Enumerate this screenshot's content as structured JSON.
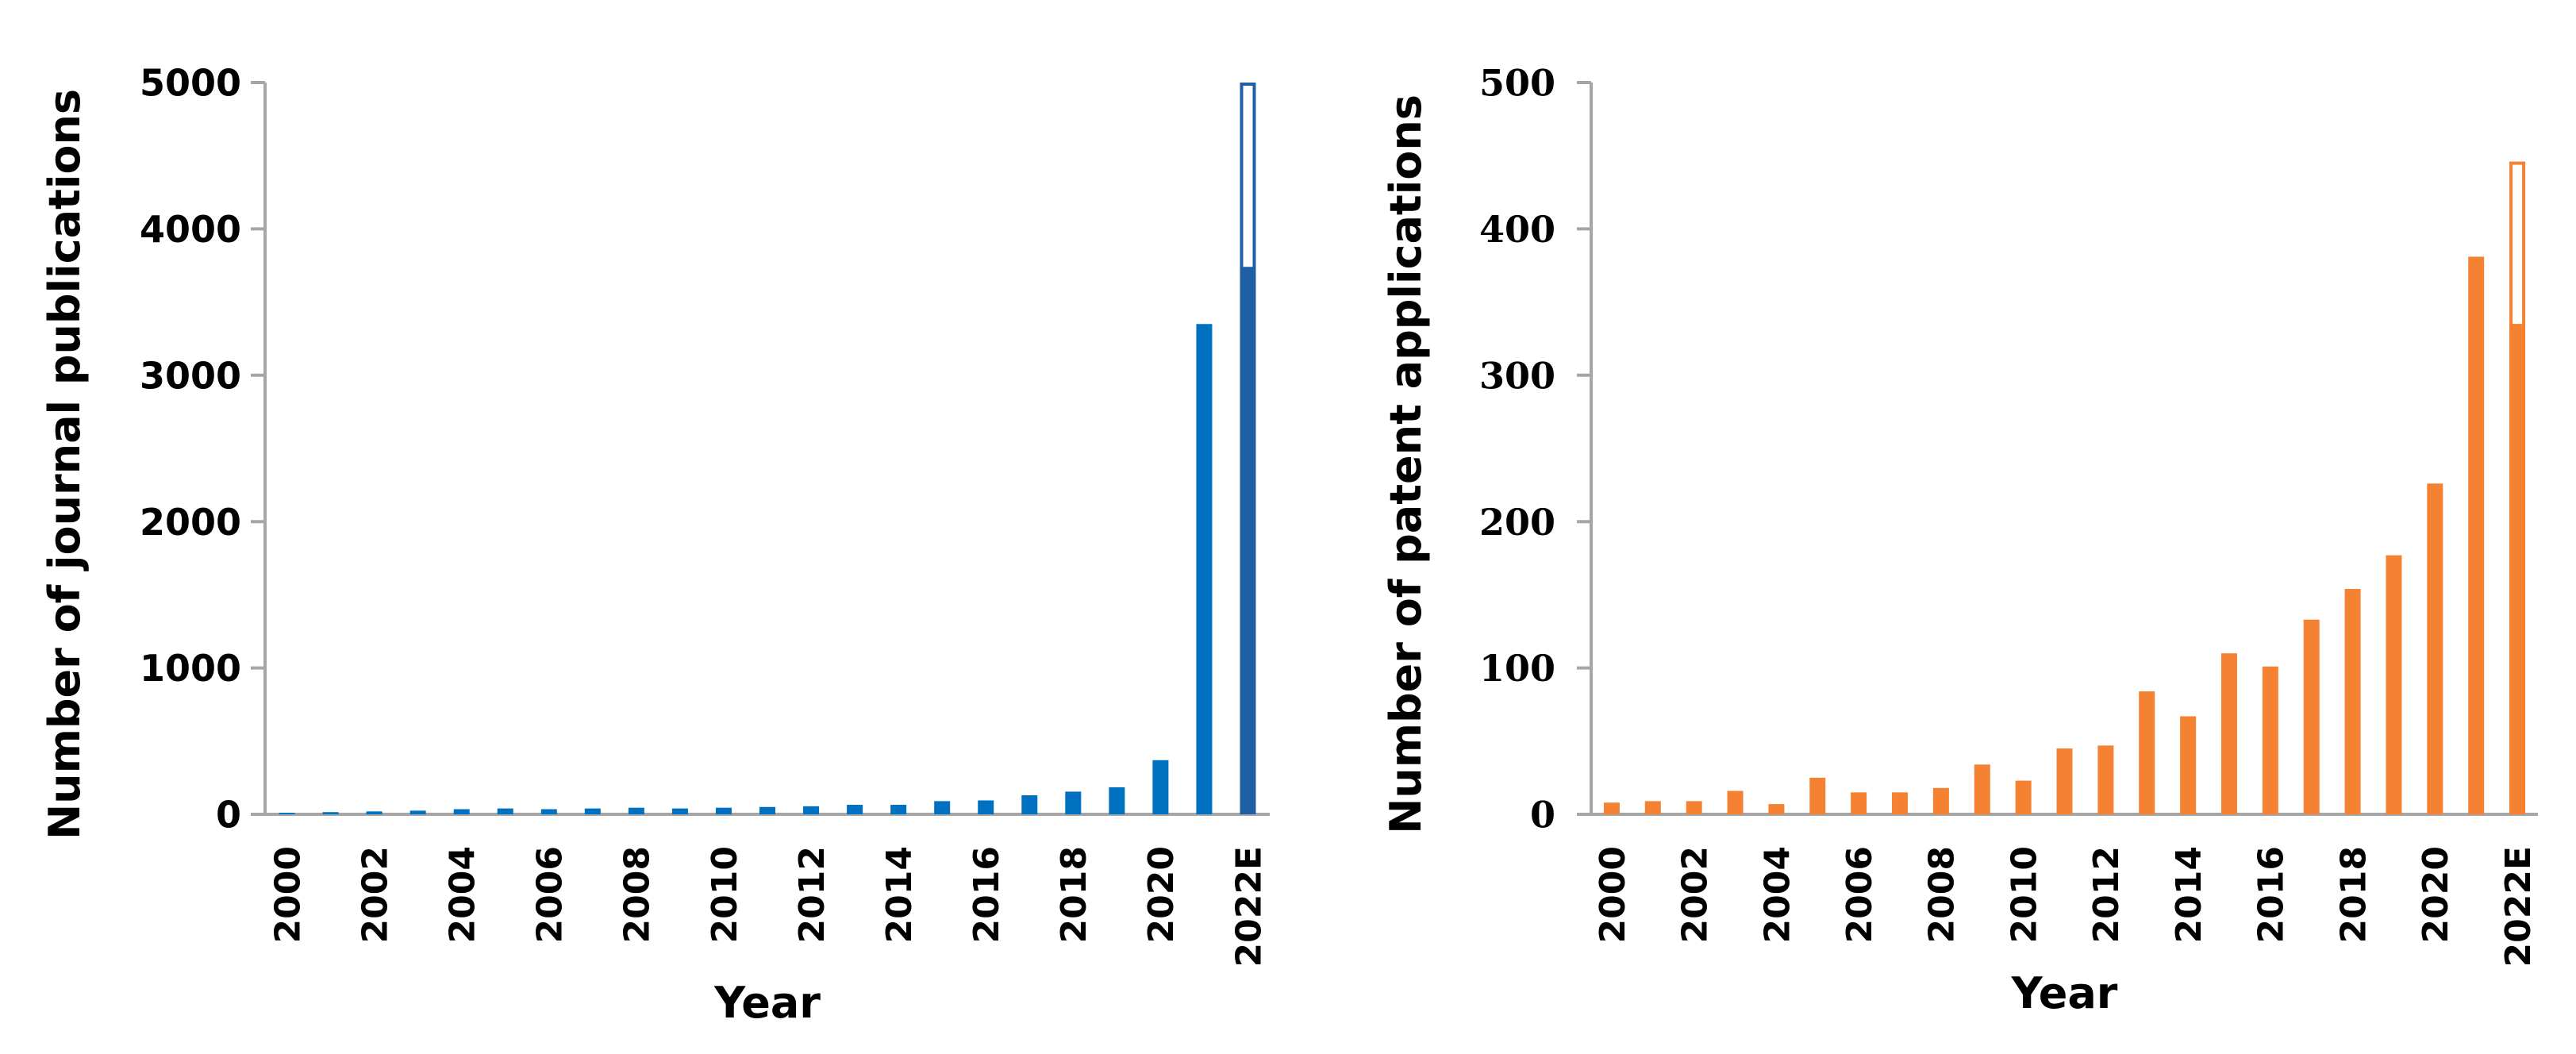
{
  "chart_data": [
    {
      "type": "bar",
      "xlabel": "Year",
      "ylabel": "Number of journal publications",
      "ylim": [
        0,
        5000
      ],
      "yticks": [
        "0",
        "1000",
        "2000",
        "3000",
        "4000",
        "5000"
      ],
      "categories": [
        "2000",
        "2001",
        "2002",
        "2003",
        "2004",
        "2005",
        "2006",
        "2007",
        "2008",
        "2009",
        "2010",
        "2011",
        "2012",
        "2013",
        "2014",
        "2015",
        "2016",
        "2017",
        "2018",
        "2019",
        "2020",
        "2021",
        "2022E"
      ],
      "x_tick_labels": [
        "2000",
        "2002",
        "2004",
        "2006",
        "2008",
        "2010",
        "2012",
        "2014",
        "2016",
        "2018",
        "2020",
        "2022E"
      ],
      "values": [
        10,
        15,
        20,
        25,
        35,
        40,
        35,
        40,
        45,
        40,
        45,
        50,
        55,
        65,
        65,
        90,
        95,
        130,
        155,
        185,
        370,
        3350,
        3730
      ],
      "estimate": {
        "category": "2022E",
        "value": 5000
      },
      "color": "#0070c0",
      "last_color": "#1f5fa6",
      "grid": false,
      "legend": "none"
    },
    {
      "type": "bar",
      "xlabel": "Year",
      "ylabel": "Number of patent applications",
      "ylim": [
        0,
        500
      ],
      "yticks": [
        "0",
        "100",
        "200",
        "300",
        "400",
        "500"
      ],
      "categories": [
        "2000",
        "2001",
        "2002",
        "2003",
        "2004",
        "2005",
        "2006",
        "2007",
        "2008",
        "2009",
        "2010",
        "2011",
        "2012",
        "2013",
        "2014",
        "2015",
        "2016",
        "2017",
        "2018",
        "2019",
        "2020",
        "2021",
        "2022E"
      ],
      "x_tick_labels": [
        "2000",
        "2002",
        "2004",
        "2006",
        "2008",
        "2010",
        "2012",
        "2014",
        "2016",
        "2018",
        "2020",
        "2022E"
      ],
      "values": [
        8,
        9,
        9,
        16,
        7,
        25,
        15,
        15,
        18,
        34,
        23,
        45,
        47,
        84,
        67,
        110,
        101,
        133,
        154,
        177,
        226,
        381,
        334
      ],
      "estimate": {
        "category": "2022E",
        "value": 446
      },
      "color": "#f58233",
      "last_color": "#f58233",
      "grid": false,
      "legend": "none"
    }
  ]
}
